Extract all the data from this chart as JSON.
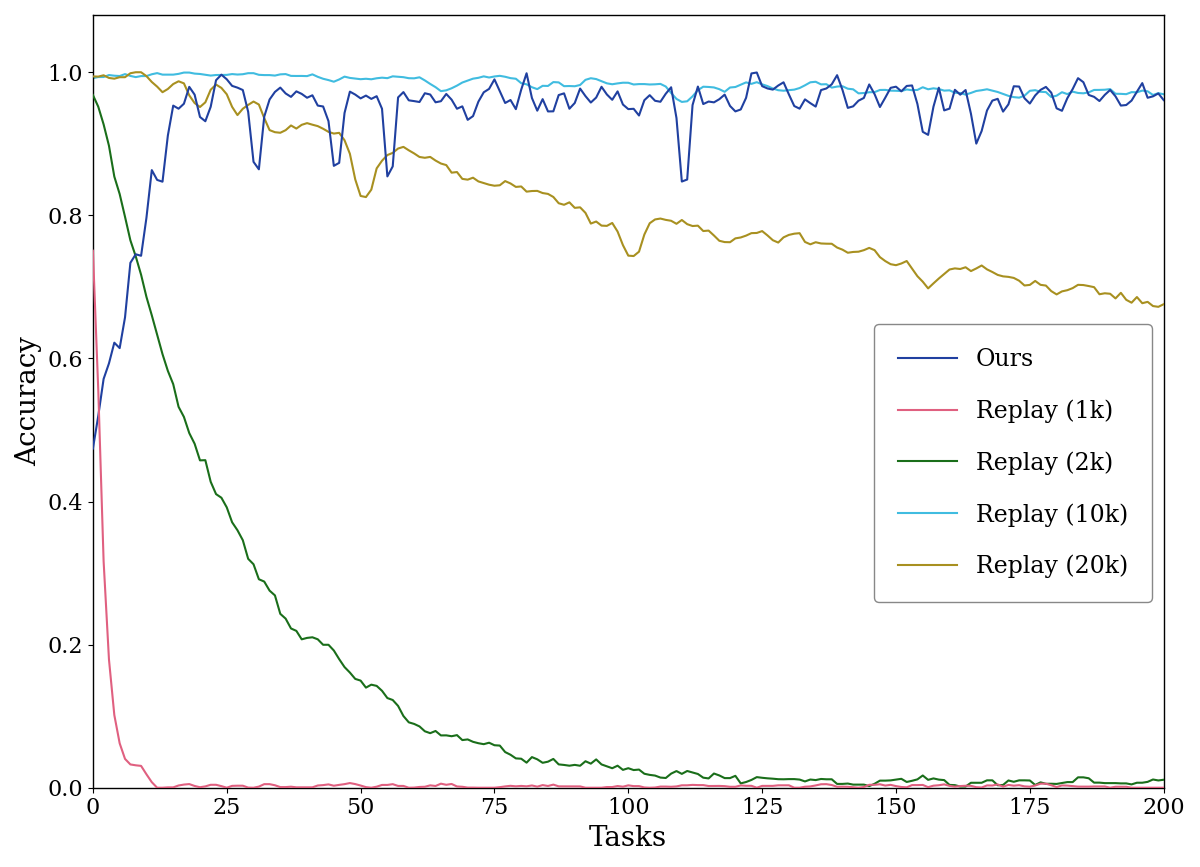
{
  "title": "",
  "xlabel": "Tasks",
  "ylabel": "Accuracy",
  "xlim": [
    0,
    200
  ],
  "ylim": [
    0.0,
    1.08
  ],
  "colors": {
    "ours": "#2040a0",
    "replay_1k": "#e06080",
    "replay_2k": "#1a6e1a",
    "replay_10k": "#a89020",
    "replay_20k": "#40bce0"
  },
  "legend_labels": [
    "Ours",
    "Replay (1k)",
    "Replay (2k)",
    "Replay (10k)",
    "Replay (20k)"
  ],
  "linewidth": 1.5,
  "xlabel_fontsize": 20,
  "ylabel_fontsize": 20,
  "tick_fontsize": 16,
  "legend_fontsize": 17,
  "n_tasks": 200,
  "seed": 42
}
